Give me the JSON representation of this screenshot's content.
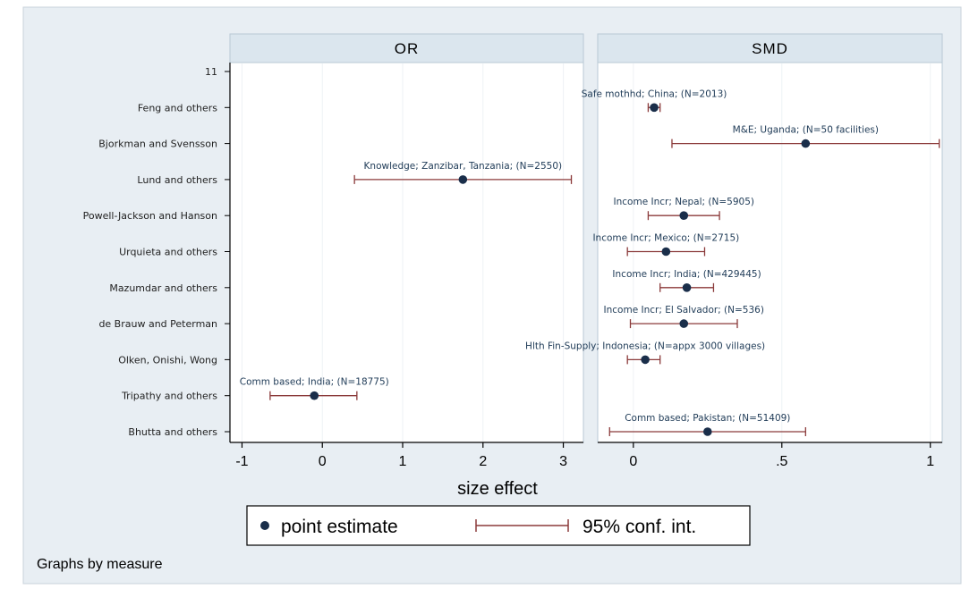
{
  "chart_data": {
    "type": "scatter",
    "note": "Graphs by measure",
    "xlabel": "size effect",
    "rows": [
      "11",
      "Feng  and others",
      "Bjorkman and Svensson",
      "Lund and others",
      "Powell-Jackson and Hanson",
      "Urquieta and others",
      "Mazumdar and others",
      "de Brauw and Peterman",
      "Olken, Onishi, Wong",
      "Tripathy and others",
      "Bhutta and others"
    ],
    "legend": {
      "position": "bottom",
      "items": [
        {
          "label": "point estimate",
          "symbol": "dot"
        },
        {
          "label": "95% conf. int.",
          "symbol": "range"
        }
      ]
    },
    "colors": {
      "point": "#1a2e4a",
      "interval": "#8b3a3a",
      "panel_header": "#dbe6ee",
      "plot_region": "#ffffff",
      "outer": "#e8eef3",
      "label": "#1f3b57"
    },
    "panels": [
      {
        "title": "OR",
        "xlim": [
          -1.15,
          3.25
        ],
        "ticks": [
          -1,
          0,
          1,
          2,
          3
        ],
        "tick_labels": [
          "-1",
          "0",
          "1",
          "2",
          "3"
        ],
        "grid": true,
        "points": [
          {
            "row": 3,
            "label": "Knowledge; Zanzibar, Tanzania; (N=2550)",
            "estimate": 1.75,
            "lower": 0.4,
            "upper": 3.1
          },
          {
            "row": 9,
            "label": "Comm based; India; (N=18775)",
            "estimate": -0.1,
            "lower": -0.65,
            "upper": 0.43
          }
        ]
      },
      {
        "title": "SMD",
        "xlim": [
          -0.12,
          1.04
        ],
        "ticks": [
          0,
          0.5,
          1
        ],
        "tick_labels": [
          "0",
          ".5",
          "1"
        ],
        "grid": true,
        "points": [
          {
            "row": 1,
            "label": "Safe mothhd; China; (N=2013)",
            "estimate": 0.07,
            "lower": 0.05,
            "upper": 0.09
          },
          {
            "row": 2,
            "label": "M&E; Uganda; (N=50 facilities)",
            "estimate": 0.58,
            "lower": 0.13,
            "upper": 1.03
          },
          {
            "row": 4,
            "label": "Income Incr; Nepal; (N=5905)",
            "estimate": 0.17,
            "lower": 0.05,
            "upper": 0.29
          },
          {
            "row": 5,
            "label": "Income Incr; Mexico; (N=2715)",
            "estimate": 0.11,
            "lower": -0.02,
            "upper": 0.24
          },
          {
            "row": 6,
            "label": "Income Incr; India; (N=429445)",
            "estimate": 0.18,
            "lower": 0.09,
            "upper": 0.27
          },
          {
            "row": 7,
            "label": "Income Incr; El Salvador; (N=536)",
            "estimate": 0.17,
            "lower": -0.01,
            "upper": 0.35
          },
          {
            "row": 8,
            "label": "Hlth Fin-Supply; Indonesia; (N=appx 3000 villages)",
            "estimate": 0.04,
            "lower": -0.02,
            "upper": 0.09
          },
          {
            "row": 10,
            "label": "Comm based; Pakistan; (N=51409)",
            "estimate": 0.25,
            "lower": -0.08,
            "upper": 0.58
          }
        ]
      }
    ]
  }
}
